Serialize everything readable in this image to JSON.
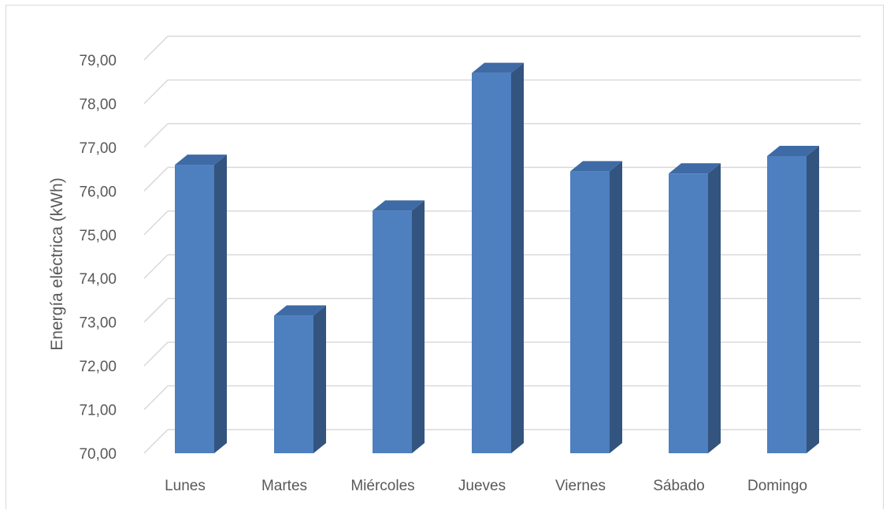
{
  "chart_data": {
    "type": "bar",
    "style": "3d-column",
    "categories": [
      "Lunes",
      "Martes",
      "Miércoles",
      "Jueves",
      "Viernes",
      "Sábado",
      "Domingo"
    ],
    "values": [
      76.6,
      73.15,
      75.55,
      78.7,
      76.45,
      76.4,
      76.8
    ],
    "title": "",
    "xlabel": "",
    "ylabel": "Energía eléctrica (kWh)",
    "ylim": [
      70,
      79
    ],
    "yticks": [
      "70,00",
      "71,00",
      "72,00",
      "73,00",
      "74,00",
      "75,00",
      "76,00",
      "77,00",
      "78,00",
      "79,00"
    ],
    "grid": true,
    "legend": "none",
    "colors": {
      "front": "#4e7fbf",
      "side": "#33547e",
      "top": "#3e6aa6",
      "grid": "#d9d9d9",
      "text": "#595959"
    }
  }
}
